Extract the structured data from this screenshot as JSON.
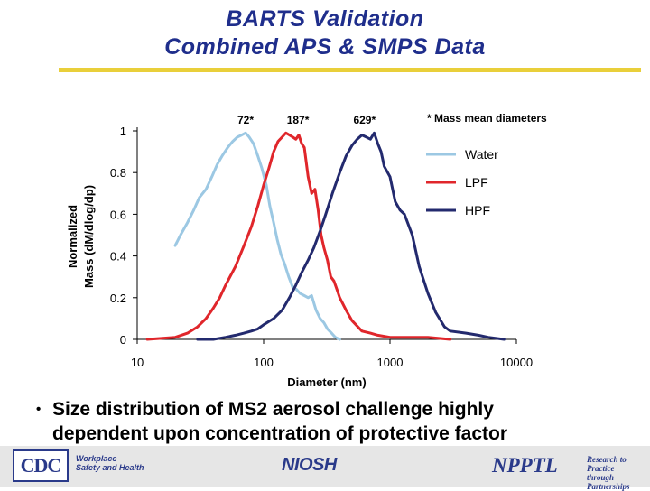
{
  "slide": {
    "title_lines": [
      "BARTS Validation",
      "Combined APS & SMPS Data"
    ],
    "bullet_mark": "•",
    "bullet_lines": [
      "Size distribution of MS2 aerosol challenge highly",
      "dependent upon concentration of protective factor"
    ]
  },
  "footer": {
    "cdc_logo_text": "CDC",
    "cdc_tagline": [
      "Workplace",
      "Safety and Health"
    ],
    "niosh_logo_text": "NIOSH",
    "nppt_logo_text": "NPPTL",
    "nppt_tagline": [
      "Research to Practice",
      "through Partnerships"
    ]
  },
  "colors": {
    "title": "#1f2e8c",
    "rule": "#e9cf3a",
    "water": "#9cc8e3",
    "lpf": "#e0262b",
    "hpf": "#232a6e"
  },
  "chart_data": {
    "type": "line",
    "title": "",
    "xlabel": "Diameter (nm)",
    "ylabel_lines": [
      "Normalized",
      "Mass (dM/dlog/dp)"
    ],
    "x_scale": "log",
    "xlim": [
      10,
      10000
    ],
    "ylim": [
      0,
      1
    ],
    "x_ticks": [
      10,
      100,
      1000,
      10000
    ],
    "x_tick_labels": [
      "10",
      "100",
      "1000",
      "10000"
    ],
    "y_ticks": [
      0,
      0.2,
      0.4,
      0.6,
      0.8,
      1
    ],
    "y_tick_labels": [
      "0",
      "0.2",
      "0.4",
      "0.6",
      "0.8",
      "1"
    ],
    "grid": false,
    "legend_position": "top-right",
    "legend_title": "* Mass mean diameters",
    "annotations": [
      {
        "text": "72*",
        "x": 72
      },
      {
        "text": "187*",
        "x": 187
      },
      {
        "text": "629*",
        "x": 629
      }
    ],
    "series": [
      {
        "name": "Water",
        "x": [
          20,
          22,
          25,
          28,
          31,
          35,
          39,
          43,
          47,
          52,
          57,
          62,
          67,
          72,
          77,
          83,
          90,
          97,
          105,
          112,
          120,
          128,
          137,
          147,
          158,
          170,
          182,
          195,
          210,
          225,
          240,
          260,
          280,
          300,
          320,
          345,
          370,
          400
        ],
        "y": [
          0.45,
          0.5,
          0.56,
          0.62,
          0.68,
          0.72,
          0.78,
          0.84,
          0.88,
          0.92,
          0.95,
          0.97,
          0.98,
          0.99,
          0.97,
          0.94,
          0.88,
          0.82,
          0.74,
          0.64,
          0.56,
          0.48,
          0.41,
          0.36,
          0.3,
          0.25,
          0.24,
          0.22,
          0.21,
          0.2,
          0.21,
          0.14,
          0.1,
          0.08,
          0.05,
          0.03,
          0.01,
          0
        ]
      },
      {
        "name": "LPF",
        "x": [
          12,
          20,
          25,
          30,
          35,
          40,
          45,
          50,
          60,
          70,
          80,
          90,
          100,
          110,
          120,
          130,
          140,
          150,
          160,
          170,
          180,
          190,
          200,
          210,
          225,
          240,
          255,
          270,
          285,
          300,
          320,
          340,
          360,
          380,
          400,
          450,
          500,
          600,
          700,
          800,
          1000,
          1500,
          2000,
          3000
        ],
        "y": [
          0,
          0.01,
          0.03,
          0.06,
          0.1,
          0.15,
          0.2,
          0.26,
          0.35,
          0.45,
          0.54,
          0.64,
          0.74,
          0.82,
          0.9,
          0.95,
          0.97,
          0.99,
          0.98,
          0.97,
          0.96,
          0.98,
          0.94,
          0.92,
          0.78,
          0.7,
          0.72,
          0.62,
          0.5,
          0.44,
          0.38,
          0.3,
          0.28,
          0.24,
          0.2,
          0.14,
          0.09,
          0.04,
          0.03,
          0.02,
          0.01,
          0.01,
          0.01,
          0
        ]
      },
      {
        "name": "HPF",
        "x": [
          30,
          40,
          50,
          60,
          70,
          80,
          90,
          100,
          120,
          140,
          160,
          180,
          200,
          225,
          250,
          280,
          310,
          350,
          400,
          450,
          500,
          550,
          600,
          650,
          700,
          750,
          800,
          850,
          900,
          1000,
          1100,
          1200,
          1300,
          1500,
          1700,
          2000,
          2300,
          2700,
          3000,
          4000,
          5000,
          6000,
          8000
        ],
        "y": [
          0,
          0,
          0.01,
          0.02,
          0.03,
          0.04,
          0.05,
          0.07,
          0.1,
          0.14,
          0.2,
          0.26,
          0.32,
          0.38,
          0.44,
          0.52,
          0.6,
          0.7,
          0.8,
          0.88,
          0.93,
          0.96,
          0.98,
          0.97,
          0.96,
          0.99,
          0.94,
          0.9,
          0.83,
          0.78,
          0.66,
          0.62,
          0.6,
          0.5,
          0.35,
          0.22,
          0.13,
          0.06,
          0.04,
          0.03,
          0.02,
          0.01,
          0
        ]
      }
    ]
  }
}
